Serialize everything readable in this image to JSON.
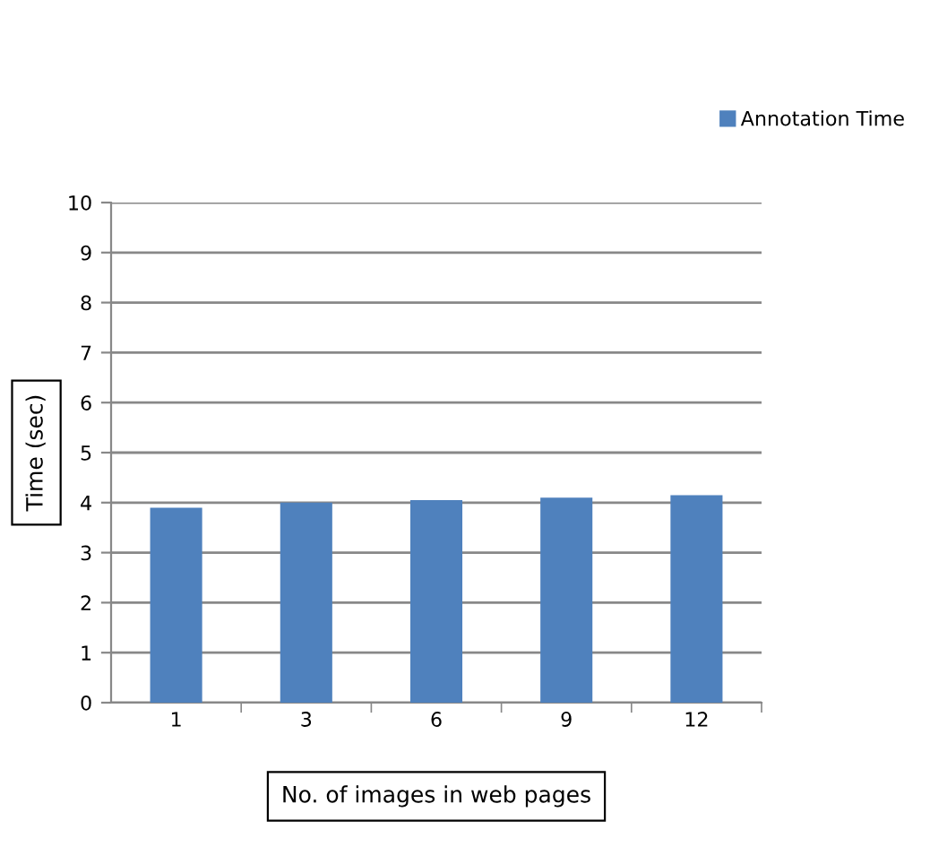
{
  "chart_data": {
    "type": "bar",
    "categories": [
      "1",
      "3",
      "6",
      "9",
      "12"
    ],
    "series": [
      {
        "name": "Annotation Time",
        "color": "#4f81bd",
        "values": [
          3.9,
          4.0,
          4.05,
          4.1,
          4.15
        ]
      }
    ],
    "xlabel": "No. of images in web pages",
    "ylabel": "Time (sec)",
    "ylim": [
      0,
      10
    ],
    "yticks": [
      0,
      1,
      2,
      3,
      4,
      5,
      6,
      7,
      8,
      9,
      10
    ],
    "grid": "y",
    "legend": "top right"
  }
}
